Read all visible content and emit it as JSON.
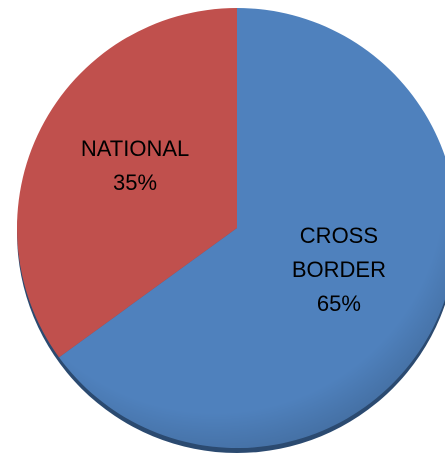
{
  "chart_data": {
    "type": "pie",
    "categories": [
      "CROSS BORDER",
      "NATIONAL"
    ],
    "values": [
      65,
      35
    ],
    "value_labels": [
      "65%",
      "35%"
    ],
    "colors": [
      "#4f81bd",
      "#c0504d"
    ]
  }
}
